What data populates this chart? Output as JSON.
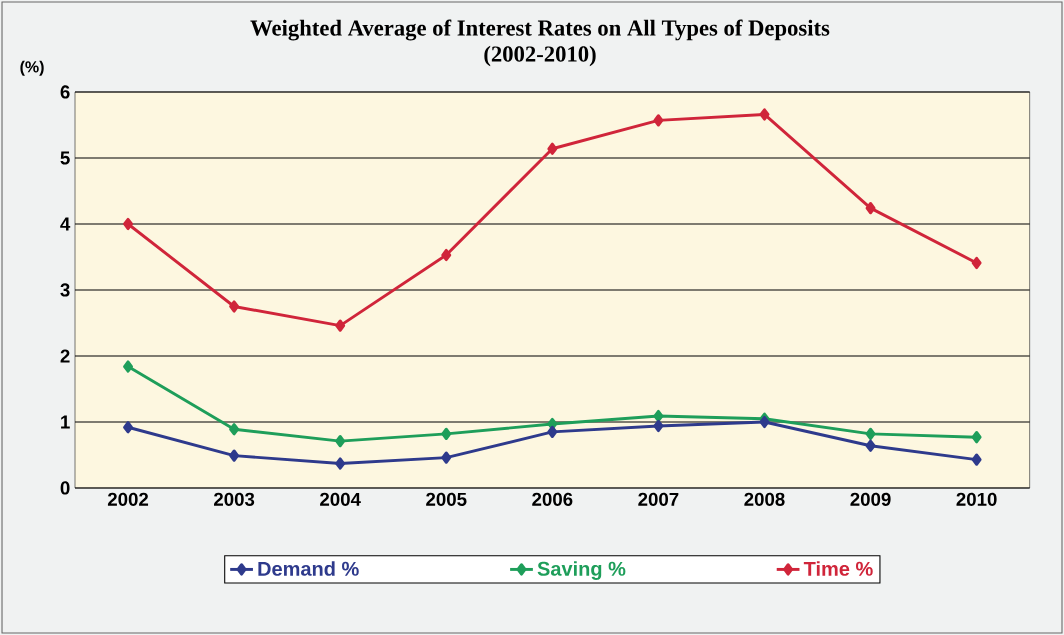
{
  "chart_data": {
    "type": "line",
    "title": "Weighted Average of Interest Rates on All Types of Deposits",
    "subtitle": "(2002-2010)",
    "ylabel": "(%)",
    "categories": [
      "2002",
      "2003",
      "2004",
      "2005",
      "2006",
      "2007",
      "2008",
      "2009",
      "2010"
    ],
    "series": [
      {
        "name": "Demand %",
        "color": "#2e3a8c",
        "values": [
          0.92,
          0.49,
          0.37,
          0.46,
          0.85,
          0.94,
          1.0,
          0.64,
          0.43
        ]
      },
      {
        "name": "Saving %",
        "color": "#1e9e5a",
        "values": [
          1.84,
          0.89,
          0.71,
          0.82,
          0.97,
          1.09,
          1.05,
          0.82,
          0.77
        ]
      },
      {
        "name": "Time %",
        "color": "#d0253a",
        "values": [
          4.0,
          2.75,
          2.46,
          3.53,
          5.14,
          5.57,
          5.66,
          4.24,
          3.41
        ]
      }
    ],
    "ylim": [
      0,
      6
    ],
    "yticks": [
      0,
      1,
      2,
      3,
      4,
      5,
      6
    ],
    "grid": "y",
    "legend": "bottom",
    "marker": "diamond"
  }
}
